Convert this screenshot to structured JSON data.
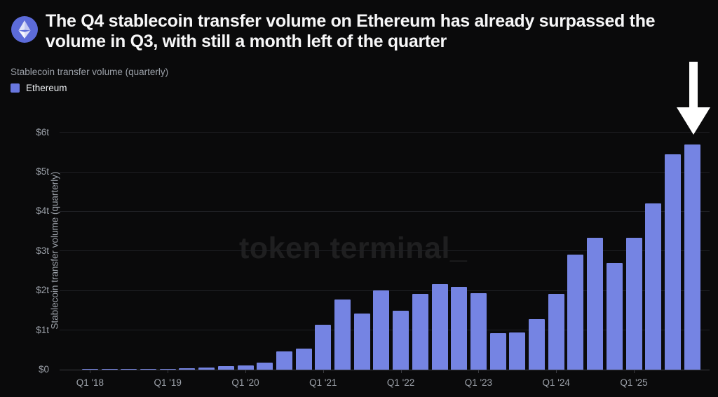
{
  "header": {
    "title_lines": [
      "The Q4 stablecoin transfer volume on Ethereum has already surpassed the",
      "volume in Q3, with still a month left of the quarter"
    ],
    "icon": "ethereum-icon"
  },
  "watermark": {
    "text": "token terminal_"
  },
  "annotation": {
    "shape": "down-arrow",
    "target": "Q4 '25",
    "color": "#ffffff"
  },
  "colors": {
    "background": "#0a0a0b",
    "bar": "#7584e3",
    "legend_swatch": "#6877df",
    "eth_badge": "#5c6bd9",
    "text_primary": "#f7f7f8",
    "text_muted": "#9ba0a8",
    "gridline": "#1f2024",
    "axis_line": "#3b3c41"
  },
  "chart_data": {
    "type": "bar",
    "title": "Stablecoin transfer volume (quarterly)",
    "legend": [
      "Ethereum"
    ],
    "legend_position": "top-left",
    "xlabel": "",
    "ylabel": "Stablecoin transfer volume (quarterly)",
    "ylim": [
      0,
      6
    ],
    "grid": "horizontal",
    "unit": "trillions of USD",
    "yticks": [
      "$0",
      "$1t",
      "$2t",
      "$3t",
      "$4t",
      "$5t",
      "$6t"
    ],
    "xticks_shown": [
      "Q1 '18",
      "Q1 '19",
      "Q1 '20",
      "Q1 '21",
      "Q1 '22",
      "Q1 '23",
      "Q1 '24",
      "Q1 '25"
    ],
    "categories": [
      "Q1 '18",
      "Q2 '18",
      "Q3 '18",
      "Q4 '18",
      "Q1 '19",
      "Q2 '19",
      "Q3 '19",
      "Q4 '19",
      "Q1 '20",
      "Q2 '20",
      "Q3 '20",
      "Q4 '20",
      "Q1 '21",
      "Q2 '21",
      "Q3 '21",
      "Q4 '21",
      "Q1 '22",
      "Q2 '22",
      "Q3 '22",
      "Q4 '22",
      "Q1 '23",
      "Q2 '23",
      "Q3 '23",
      "Q4 '23",
      "Q1 '24",
      "Q2 '24",
      "Q3 '24",
      "Q4 '24",
      "Q1 '25",
      "Q2 '25",
      "Q3 '25",
      "Q4 '25"
    ],
    "series": [
      {
        "name": "Ethereum",
        "values": [
          0.01,
          0.01,
          0.02,
          0.02,
          0.02,
          0.03,
          0.06,
          0.09,
          0.11,
          0.17,
          0.46,
          0.53,
          1.14,
          1.78,
          1.41,
          2.01,
          1.49,
          1.92,
          2.16,
          2.1,
          1.93,
          0.93,
          0.94,
          1.27,
          1.92,
          2.9,
          3.34,
          2.69,
          3.34,
          4.21,
          5.45,
          5.69
        ]
      }
    ]
  }
}
